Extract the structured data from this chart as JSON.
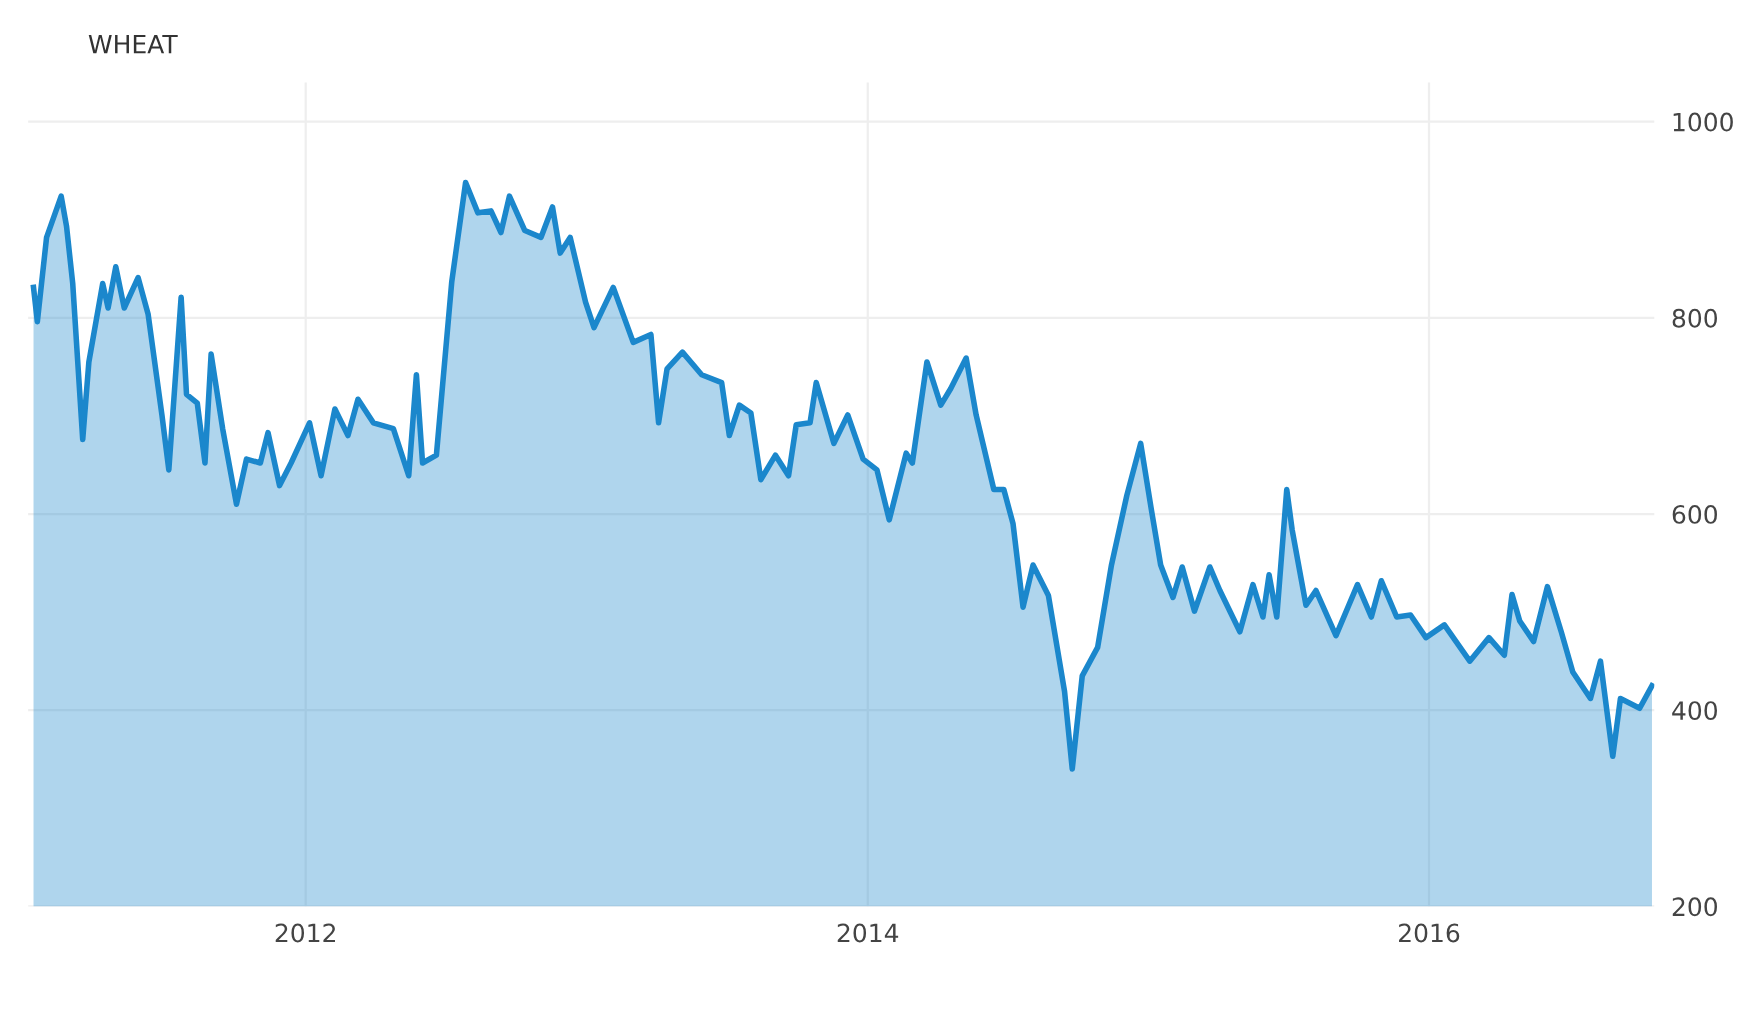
{
  "chart_data": {
    "type": "area",
    "title": "WHEAT",
    "x": [
      "2011-01-12",
      "2011-01-17",
      "2011-01-29",
      "2011-02-17",
      "2011-02-24",
      "2011-03-04",
      "2011-03-17",
      "2011-03-25",
      "2011-04-12",
      "2011-04-19",
      "2011-04-29",
      "2011-05-10",
      "2011-05-28",
      "2011-06-10",
      "2011-06-28",
      "2011-07-07",
      "2011-07-23",
      "2011-07-30",
      "2011-08-13",
      "2011-08-23",
      "2011-08-31",
      "2011-09-15",
      "2011-10-03",
      "2011-10-16",
      "2011-11-03",
      "2011-11-13",
      "2011-11-28",
      "2011-12-13",
      "2012-01-06",
      "2012-01-21",
      "2012-02-08",
      "2012-02-25",
      "2012-03-09",
      "2012-03-29",
      "2012-04-24",
      "2012-05-14",
      "2012-05-24",
      "2012-06-01",
      "2012-06-19",
      "2012-07-09",
      "2012-07-27",
      "2012-08-12",
      "2012-08-29",
      "2012-09-11",
      "2012-09-22",
      "2012-10-12",
      "2012-11-02",
      "2012-11-17",
      "2012-11-27",
      "2012-12-10",
      "2012-12-30",
      "2013-01-10",
      "2013-02-04",
      "2013-03-02",
      "2013-03-25",
      "2013-04-04",
      "2013-04-15",
      "2013-05-05",
      "2013-05-30",
      "2013-06-25",
      "2013-07-05",
      "2013-07-18",
      "2013-08-02",
      "2013-08-15",
      "2013-09-03",
      "2013-09-20",
      "2013-09-30",
      "2013-10-18",
      "2013-10-26",
      "2013-11-18",
      "2013-12-06",
      "2013-12-26",
      "2014-01-13",
      "2014-01-29",
      "2014-02-20",
      "2014-02-28",
      "2014-03-19",
      "2014-04-06",
      "2014-04-19",
      "2014-05-09",
      "2014-05-22",
      "2014-06-14",
      "2014-06-27",
      "2014-07-09",
      "2014-07-22",
      "2014-08-04",
      "2014-08-24",
      "2014-09-14",
      "2014-09-24",
      "2014-10-07",
      "2014-10-27",
      "2014-11-14",
      "2014-12-04",
      "2014-12-22",
      "2015-01-05",
      "2015-01-17",
      "2015-02-02",
      "2015-02-14",
      "2015-03-02",
      "2015-03-22",
      "2015-04-04",
      "2015-04-30",
      "2015-05-17",
      "2015-05-30",
      "2015-06-07",
      "2015-06-17",
      "2015-06-30",
      "2015-07-07",
      "2015-07-25",
      "2015-08-07",
      "2015-09-02",
      "2015-09-30",
      "2015-10-18",
      "2015-10-31",
      "2015-11-20",
      "2015-12-08",
      "2015-12-28",
      "2016-01-21",
      "2016-02-23",
      "2016-03-19",
      "2016-04-08",
      "2016-04-18",
      "2016-04-28",
      "2016-05-16",
      "2016-06-03",
      "2016-06-21",
      "2016-07-06",
      "2016-07-29",
      "2016-08-11",
      "2016-08-27",
      "2016-09-06",
      "2016-10-01",
      "2016-10-17"
    ],
    "series": [
      {
        "color": "#1b87cc",
        "values": [
          831,
          796,
          882,
          924,
          893,
          835,
          676,
          755,
          835,
          810,
          852,
          810,
          841,
          804,
          701,
          645,
          821,
          722,
          713,
          652,
          763,
          687,
          610,
          656,
          652,
          683,
          629,
          652,
          693,
          639,
          707,
          680,
          717,
          693,
          687,
          639,
          742,
          652,
          660,
          837,
          938,
          907,
          909,
          887,
          924,
          889,
          882,
          913,
          866,
          882,
          816,
          790,
          831,
          775,
          783,
          693,
          748,
          765,
          742,
          734,
          680,
          711,
          703,
          635,
          660,
          639,
          691,
          693,
          734,
          672,
          701,
          656,
          645,
          594,
          662,
          652,
          755,
          711,
          728,
          759,
          701,
          625,
          625,
          590,
          505,
          548,
          517,
          419,
          340,
          435,
          464,
          548,
          619,
          672,
          604,
          548,
          515,
          546,
          501,
          546,
          522,
          480,
          528,
          495,
          538,
          495,
          625,
          584,
          507,
          522,
          476,
          528,
          495,
          532,
          495,
          497,
          474,
          487,
          450,
          474,
          456,
          518,
          491,
          470,
          526,
          480,
          439,
          412,
          450,
          353,
          412,
          402,
          425
        ]
      }
    ],
    "xlim": [
      "2011-01-05",
      "2016-10-20"
    ],
    "xticks": [
      "2012",
      "2014",
      "2016"
    ],
    "ylim": [
      200,
      1040
    ],
    "yticks": [
      200,
      400,
      600,
      800,
      1000
    ],
    "grid": true,
    "legend": false
  }
}
